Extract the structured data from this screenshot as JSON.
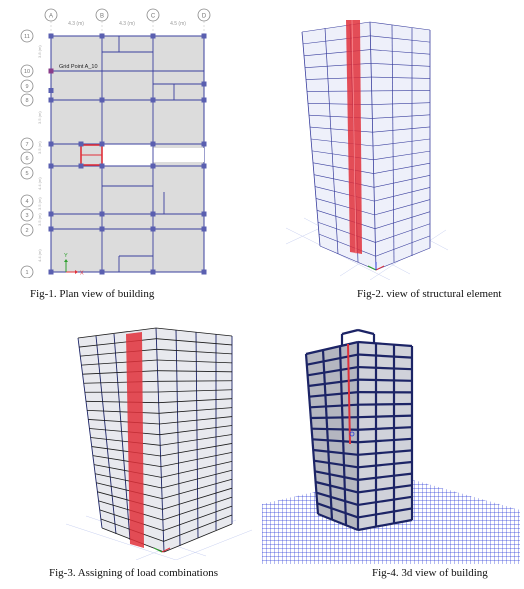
{
  "plan": {
    "grid_letters": [
      "A",
      "B",
      "C",
      "D"
    ],
    "span_labels": [
      "4.3 (m)",
      "4.3 (m)",
      "4.5 (m)"
    ],
    "row_labels": [
      "11",
      "10",
      "9",
      "8",
      "7",
      "6",
      "5",
      "4",
      "3",
      "2",
      "1"
    ],
    "row_dims": [
      "3.8 (m)",
      "3.5 (m)",
      "3.5 (m)",
      "4.4 (m)",
      "3.5 (m)",
      "3.5 (m)",
      "4.4 (m)"
    ],
    "grid_point_label": "Grid Point A_10",
    "axis_x": "X",
    "axis_y": "Y"
  },
  "captions": {
    "fig1": "Fig-1. Plan view of building",
    "fig2": "Fig-2.  view of structural element",
    "fig3": "Fig-3. Assigning of load combinations",
    "fig4": "Fig-4. 3d view of building"
  },
  "colors": {
    "slab": "#dcdcdc",
    "beam": "#3a3f9e",
    "column": "#5a5fb0",
    "highlight": "#e0303a",
    "frame_dark": "#1c2466",
    "ground_grid": "#2a3ad8"
  }
}
